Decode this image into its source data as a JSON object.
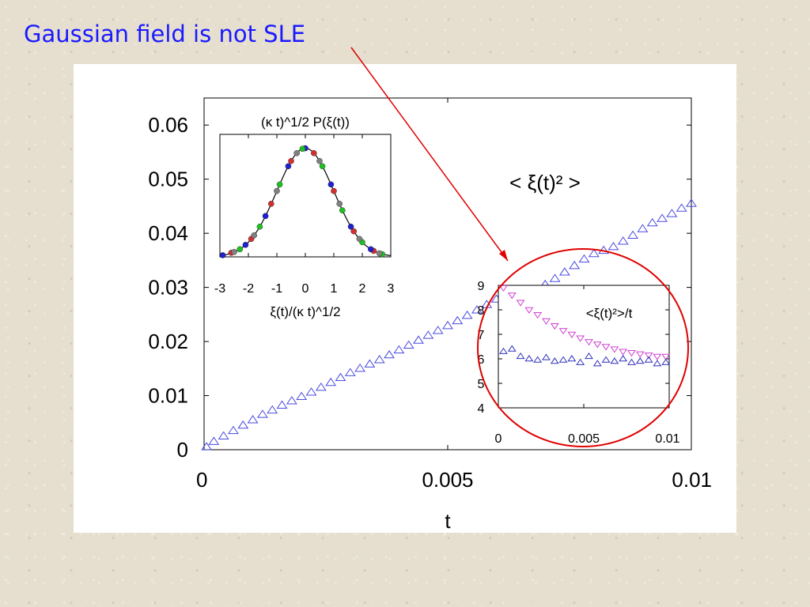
{
  "slide": {
    "title": "Gaussian field is not SLE",
    "title_color": "#1a1aff",
    "arrow_color": "#e00000",
    "highlight_ellipse_color": "#e00000"
  },
  "chart_data": [
    {
      "id": "main",
      "type": "scatter",
      "xlabel": "t",
      "ylabel": "",
      "xlim": [
        0,
        0.01
      ],
      "ylim": [
        0,
        0.065
      ],
      "xticks": [
        {
          "v": 0,
          "label": "0"
        },
        {
          "v": 0.005,
          "label": "0.005"
        },
        {
          "v": 0.01,
          "label": "0.01"
        }
      ],
      "yticks": [
        {
          "v": 0,
          "label": "0"
        },
        {
          "v": 0.01,
          "label": "0.01"
        },
        {
          "v": 0.02,
          "label": "0.02"
        },
        {
          "v": 0.03,
          "label": "0.03"
        },
        {
          "v": 0.04,
          "label": "0.04"
        },
        {
          "v": 0.05,
          "label": "0.05"
        },
        {
          "v": 0.06,
          "label": "0.06"
        }
      ],
      "annotation": "< ξ(t)² >",
      "series": [
        {
          "marker": "triangle",
          "color": "#4a4adf",
          "x": [
            5e-05,
            0.0002,
            0.0004,
            0.0006,
            0.0008,
            0.001,
            0.0012,
            0.0014,
            0.0016,
            0.0018,
            0.002,
            0.0022,
            0.0024,
            0.0026,
            0.0028,
            0.003,
            0.0032,
            0.0034,
            0.0036,
            0.0038,
            0.004,
            0.0042,
            0.0044,
            0.0046,
            0.0048,
            0.005,
            0.0052,
            0.0054,
            0.0056,
            0.0058,
            0.006,
            0.0062,
            0.0064,
            0.0066,
            0.0068,
            0.007,
            0.0072,
            0.0074,
            0.0076,
            0.0078,
            0.008,
            0.0082,
            0.0084,
            0.0086,
            0.0088,
            0.009,
            0.0092,
            0.0094,
            0.0096,
            0.0098,
            0.01
          ],
          "y": [
            0.0005,
            0.0015,
            0.0025,
            0.0035,
            0.0045,
            0.0055,
            0.0065,
            0.0073,
            0.0082,
            0.009,
            0.0098,
            0.0106,
            0.0115,
            0.0124,
            0.0133,
            0.0142,
            0.015,
            0.0158,
            0.0166,
            0.0175,
            0.0184,
            0.0193,
            0.0202,
            0.0211,
            0.022,
            0.0229,
            0.0238,
            0.0248,
            0.0258,
            0.0268,
            0.0278,
            0.0287,
            0.0291,
            0.0289,
            0.0293,
            0.0305,
            0.0316,
            0.0328,
            0.034,
            0.0352,
            0.0362,
            0.0368,
            0.0375,
            0.0385,
            0.0396,
            0.0408,
            0.0419,
            0.0427,
            0.0436,
            0.0446,
            0.0455
          ]
        }
      ]
    },
    {
      "id": "inset_top",
      "type": "scatter",
      "title": "(κ t)^1/2 P(ξ(t))",
      "xlabel": "ξ(t)/(κ t)^1/2",
      "xlim": [
        -3,
        3
      ],
      "ylim": [
        0,
        0.45
      ],
      "xticks": [
        {
          "v": -3,
          "label": "-3"
        },
        {
          "v": -2,
          "label": "-2"
        },
        {
          "v": -1,
          "label": "-1"
        },
        {
          "v": 0,
          "label": "0"
        },
        {
          "v": 1,
          "label": "1"
        },
        {
          "v": 2,
          "label": "2"
        },
        {
          "v": 3,
          "label": "3"
        }
      ],
      "curve": {
        "kind": "gaussian",
        "sigma": 1,
        "color": "#000000"
      },
      "series": [
        {
          "color": "#d03030",
          "x": [
            -2.6,
            -1.9,
            -1.2,
            -0.5,
            0.3,
            1.0,
            1.7,
            2.4
          ],
          "y": [
            0.015,
            0.066,
            0.195,
            0.352,
            0.381,
            0.242,
            0.094,
            0.022
          ]
        },
        {
          "color": "#2020d0",
          "x": [
            -2.9,
            -2.1,
            -1.4,
            -0.6,
            0.0,
            0.9,
            1.6,
            2.3
          ],
          "y": [
            0.006,
            0.044,
            0.15,
            0.333,
            0.399,
            0.266,
            0.111,
            0.028
          ]
        },
        {
          "color": "#20c020",
          "x": [
            -2.3,
            -1.6,
            -0.9,
            -0.1,
            0.6,
            1.3,
            2.0,
            2.7
          ],
          "y": [
            0.028,
            0.111,
            0.266,
            0.397,
            0.333,
            0.171,
            0.054,
            0.01
          ]
        },
        {
          "color": "#808080",
          "x": [
            -2.5,
            -1.8,
            -1.0,
            -0.3,
            0.5,
            1.2,
            1.9,
            2.6
          ],
          "y": [
            0.018,
            0.079,
            0.242,
            0.381,
            0.352,
            0.195,
            0.066,
            0.013
          ]
        }
      ]
    },
    {
      "id": "inset_bottom",
      "type": "scatter",
      "title": "<ξ(t)²>/t",
      "xlim": [
        0,
        0.01
      ],
      "ylim": [
        4,
        9
      ],
      "xticks": [
        {
          "v": 0,
          "label": "0"
        },
        {
          "v": 0.005,
          "label": "0.005"
        },
        {
          "v": 0.01,
          "label": "0.01"
        }
      ],
      "yticks": [
        {
          "v": 4,
          "label": "4"
        },
        {
          "v": 5,
          "label": "5"
        },
        {
          "v": 6,
          "label": "6"
        },
        {
          "v": 7,
          "label": "7"
        },
        {
          "v": 8,
          "label": "8"
        },
        {
          "v": 9,
          "label": "9"
        }
      ],
      "series": [
        {
          "marker": "triangle-down",
          "color": "#d040d0",
          "x": [
            0.0003,
            0.0008,
            0.0013,
            0.0018,
            0.0023,
            0.0028,
            0.0033,
            0.0038,
            0.0043,
            0.0048,
            0.0053,
            0.0058,
            0.0063,
            0.0068,
            0.0073,
            0.0078,
            0.0083,
            0.0088,
            0.0093,
            0.0098
          ],
          "y": [
            8.9,
            8.6,
            8.3,
            8.0,
            7.8,
            7.55,
            7.35,
            7.15,
            7.0,
            6.85,
            6.7,
            6.6,
            6.5,
            6.4,
            6.3,
            6.25,
            6.2,
            6.15,
            6.1,
            6.1
          ]
        },
        {
          "marker": "triangle",
          "color": "#3030c0",
          "x": [
            0.0003,
            0.0008,
            0.0013,
            0.0018,
            0.0023,
            0.0028,
            0.0033,
            0.0038,
            0.0043,
            0.0048,
            0.0053,
            0.0058,
            0.0063,
            0.0068,
            0.0073,
            0.0078,
            0.0083,
            0.0088,
            0.0093,
            0.0098
          ],
          "y": [
            6.3,
            6.4,
            6.1,
            6.0,
            5.95,
            6.05,
            5.9,
            5.95,
            6.0,
            5.85,
            6.1,
            5.8,
            5.95,
            5.9,
            6.0,
            5.85,
            5.9,
            5.95,
            5.8,
            5.85
          ]
        }
      ]
    }
  ]
}
